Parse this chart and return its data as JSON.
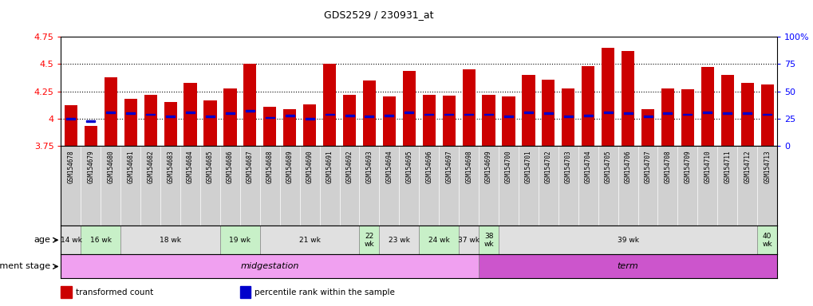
{
  "title": "GDS2529 / 230931_at",
  "samples": [
    "GSM154678",
    "GSM154679",
    "GSM154680",
    "GSM154681",
    "GSM154682",
    "GSM154683",
    "GSM154684",
    "GSM154685",
    "GSM154686",
    "GSM154687",
    "GSM154688",
    "GSM154689",
    "GSM154690",
    "GSM154691",
    "GSM154692",
    "GSM154693",
    "GSM154694",
    "GSM154695",
    "GSM154696",
    "GSM154697",
    "GSM154698",
    "GSM154699",
    "GSM154700",
    "GSM154701",
    "GSM154702",
    "GSM154703",
    "GSM154704",
    "GSM154705",
    "GSM154706",
    "GSM154707",
    "GSM154708",
    "GSM154709",
    "GSM154710",
    "GSM154711",
    "GSM154712",
    "GSM154713"
  ],
  "bar_values": [
    4.12,
    3.93,
    4.38,
    4.18,
    4.22,
    4.15,
    4.33,
    4.17,
    4.28,
    4.5,
    4.11,
    4.09,
    4.13,
    4.5,
    4.22,
    4.35,
    4.2,
    4.44,
    4.22,
    4.21,
    4.45,
    4.22,
    4.2,
    4.4,
    4.36,
    4.28,
    4.48,
    4.65,
    4.62,
    4.09,
    4.28,
    4.27,
    4.47,
    4.4,
    4.33,
    4.31
  ],
  "percentile_values": [
    4.0,
    3.98,
    4.06,
    4.05,
    4.04,
    4.02,
    4.06,
    4.02,
    4.05,
    4.07,
    4.01,
    4.03,
    4.0,
    4.04,
    4.03,
    4.02,
    4.03,
    4.06,
    4.04,
    4.04,
    4.04,
    4.04,
    4.02,
    4.06,
    4.05,
    4.02,
    4.03,
    4.06,
    4.05,
    4.02,
    4.05,
    4.04,
    4.06,
    4.05,
    4.05,
    4.04
  ],
  "ylim_left": [
    3.75,
    4.75
  ],
  "yticks_left": [
    3.75,
    4.0,
    4.25,
    4.5,
    4.75
  ],
  "ytick_labels_left": [
    "3.75",
    "4",
    "4.25",
    "4.5",
    "4.75"
  ],
  "ylim_right": [
    0,
    100
  ],
  "yticks_right": [
    0,
    25,
    50,
    75,
    100
  ],
  "ytick_labels_right": [
    "0",
    "25",
    "50",
    "75",
    "100%"
  ],
  "bar_color": "#cc0000",
  "percentile_color": "#0000cc",
  "age_groups": [
    {
      "label": "14 wk",
      "start": 0,
      "end": 1,
      "color": "#e0e0e0"
    },
    {
      "label": "16 wk",
      "start": 1,
      "end": 3,
      "color": "#c8f0c8"
    },
    {
      "label": "18 wk",
      "start": 3,
      "end": 8,
      "color": "#e0e0e0"
    },
    {
      "label": "19 wk",
      "start": 8,
      "end": 10,
      "color": "#c8f0c8"
    },
    {
      "label": "21 wk",
      "start": 10,
      "end": 15,
      "color": "#e0e0e0"
    },
    {
      "label": "22\nwk",
      "start": 15,
      "end": 16,
      "color": "#c8f0c8"
    },
    {
      "label": "23 wk",
      "start": 16,
      "end": 18,
      "color": "#e0e0e0"
    },
    {
      "label": "24 wk",
      "start": 18,
      "end": 20,
      "color": "#c8f0c8"
    },
    {
      "label": "37 wk",
      "start": 20,
      "end": 21,
      "color": "#e0e0e0"
    },
    {
      "label": "38\nwk",
      "start": 21,
      "end": 22,
      "color": "#c8f0c8"
    },
    {
      "label": "39 wk",
      "start": 22,
      "end": 35,
      "color": "#e0e0e0"
    },
    {
      "label": "40\nwk",
      "start": 35,
      "end": 36,
      "color": "#c8f0c8"
    }
  ],
  "dev_groups": [
    {
      "label": "midgestation",
      "start": 0,
      "end": 21,
      "color": "#f0a0f0"
    },
    {
      "label": "term",
      "start": 21,
      "end": 36,
      "color": "#cc55cc"
    }
  ],
  "legend_items": [
    {
      "color": "#cc0000",
      "label": "transformed count"
    },
    {
      "color": "#0000cc",
      "label": "percentile rank within the sample"
    }
  ],
  "bar_width": 0.65,
  "xtick_bg_color": "#d0d0d0"
}
